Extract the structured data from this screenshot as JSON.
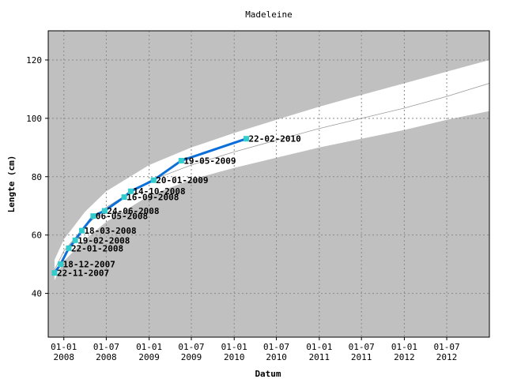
{
  "chart_data": {
    "type": "line",
    "title": "Madeleine",
    "xlabel": "Datum",
    "ylabel": "Lengte (cm)",
    "x_axis": "date",
    "xlim": [
      "2007-10-26",
      "2012-12-31"
    ],
    "ylim": [
      25,
      130
    ],
    "y_ticks": [
      40,
      60,
      80,
      100,
      120
    ],
    "x_ticks": [
      {
        "date": "2008-01-01",
        "line1": "01-01",
        "line2": "2008"
      },
      {
        "date": "2008-07-01",
        "line1": "01-07",
        "line2": "2008"
      },
      {
        "date": "2009-01-01",
        "line1": "01-01",
        "line2": "2009"
      },
      {
        "date": "2009-07-01",
        "line1": "01-07",
        "line2": "2009"
      },
      {
        "date": "2010-01-01",
        "line1": "01-01",
        "line2": "2010"
      },
      {
        "date": "2010-07-01",
        "line1": "01-07",
        "line2": "2010"
      },
      {
        "date": "2011-01-01",
        "line1": "01-01",
        "line2": "2011"
      },
      {
        "date": "2011-07-01",
        "line1": "01-07",
        "line2": "2011"
      },
      {
        "date": "2012-01-01",
        "line1": "01-01",
        "line2": "2012"
      },
      {
        "date": "2012-07-01",
        "line1": "01-07",
        "line2": "2012"
      }
    ],
    "grid": true,
    "colors": {
      "background": "#c0c0c0",
      "band": "#ffffff",
      "median": "#999999",
      "line": "#0a6fd8",
      "marker": "#33cccc",
      "grid": "#8a8a8a"
    },
    "reference_band": {
      "x": [
        "2007-11-22",
        "2008-01-01",
        "2008-04-01",
        "2008-07-01",
        "2009-01-01",
        "2009-07-01",
        "2010-01-01",
        "2010-07-01",
        "2011-01-01",
        "2011-07-01",
        "2012-01-01",
        "2012-07-01",
        "2012-12-31"
      ],
      "upper": [
        51.5,
        58.5,
        68,
        75,
        84,
        90,
        95,
        99.5,
        104,
        108,
        112,
        116,
        120
      ],
      "median": [
        48,
        54.5,
        63,
        69.5,
        78.5,
        84,
        88.5,
        92.5,
        96.5,
        100,
        103.5,
        107.5,
        112
      ],
      "lower": [
        44.5,
        51,
        58.5,
        64.5,
        73.5,
        79,
        83,
        86.5,
        90,
        93,
        96,
        99.5,
        102.5
      ]
    },
    "series": [
      {
        "x": [
          "2007-11-22",
          "2007-12-18",
          "2008-01-22",
          "2008-02-19",
          "2008-03-18",
          "2008-05-06",
          "2008-06-24",
          "2008-09-16",
          "2008-10-14",
          "2009-01-20",
          "2009-05-19",
          "2010-02-22"
        ],
        "y": [
          47,
          50,
          55.5,
          58.2,
          61.5,
          66.5,
          68.3,
          73,
          75,
          78.8,
          85.5,
          93
        ],
        "labels": [
          "22-11-2007",
          "18-12-2007",
          "22-01-2008",
          "19-02-2008",
          "18-03-2008",
          "06-05-2008",
          "24-06-2008",
          "16-09-2008",
          "14-10-2008",
          "20-01-2009",
          "19-05-2009",
          "22-02-2010"
        ]
      }
    ]
  }
}
